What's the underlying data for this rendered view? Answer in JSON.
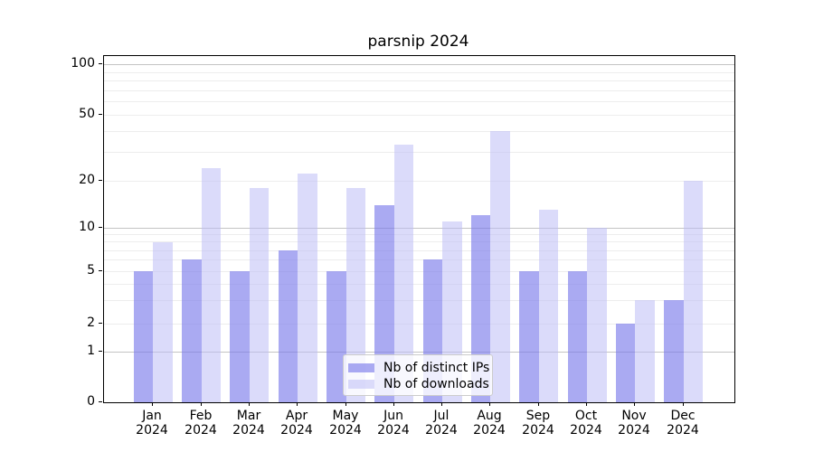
{
  "figure": {
    "title": "parsnip 2024"
  },
  "axes": {
    "y_tick_labels": [
      "100",
      "50",
      "20",
      "10",
      "5",
      "2",
      "1",
      "0"
    ],
    "x_month_labels": [
      "Jan",
      "Feb",
      "Mar",
      "Apr",
      "May",
      "Jun",
      "Jul",
      "Aug",
      "Sep",
      "Oct",
      "Nov",
      "Dec"
    ],
    "x_year_label": "2024"
  },
  "legend": {
    "items": [
      {
        "label": "Nb of distinct IPs"
      },
      {
        "label": "Nb of downloads"
      }
    ]
  },
  "colors": {
    "bar_distinct_ips": "#7c7ceb",
    "bar_distinct_ips_alpha": 0.65,
    "bar_downloads": "#bebef5",
    "bar_downloads_alpha": 0.55,
    "grid_major": "#c4c4c4",
    "grid_minor": "#ededed",
    "spine": "#000000"
  },
  "chart_data": {
    "type": "bar",
    "title": "parsnip 2024",
    "categories": [
      "Jan 2024",
      "Feb 2024",
      "Mar 2024",
      "Apr 2024",
      "May 2024",
      "Jun 2024",
      "Jul 2024",
      "Aug 2024",
      "Sep 2024",
      "Oct 2024",
      "Nov 2024",
      "Dec 2024"
    ],
    "series": [
      {
        "name": "Nb of distinct IPs",
        "color": "#7c7ceb",
        "alpha": 0.65,
        "values": [
          5,
          6,
          5,
          7,
          5,
          14,
          6,
          12,
          5,
          5,
          2,
          3
        ]
      },
      {
        "name": "Nb of downloads",
        "color": "#bebef5",
        "alpha": 0.55,
        "values": [
          8,
          24,
          18,
          22,
          18,
          33,
          11,
          40,
          13,
          10,
          3,
          20
        ]
      }
    ],
    "xlabel": "",
    "ylabel": "",
    "yscale": "asinh",
    "ylim": [
      0,
      100
    ],
    "yticks_major": [
      0,
      1,
      2,
      5,
      10,
      20,
      50,
      100
    ],
    "yticks_minor_unlabeled": [
      3,
      4,
      6,
      7,
      8,
      9,
      30,
      40,
      60,
      70,
      80,
      90
    ],
    "grid": true,
    "legend_position": "lower center"
  }
}
